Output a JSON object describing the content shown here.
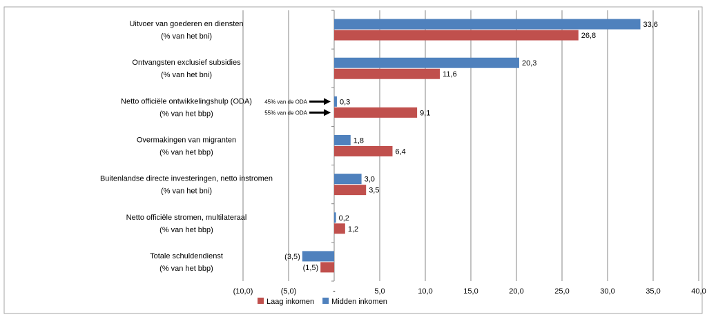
{
  "chart_data": {
    "type": "bar",
    "orientation": "horizontal",
    "categories": [
      {
        "line1": "Uitvoer van goederen en diensten",
        "line2": "(% van het bni)"
      },
      {
        "line1": "Ontvangsten exclusief subsidies",
        "line2": "(% van het bni)"
      },
      {
        "line1": "Netto officiële ontwikkelingshulp (ODA)",
        "line2": "(% van het bbp)"
      },
      {
        "line1": "Overmakingen van migranten",
        "line2": "(% van het bbp)"
      },
      {
        "line1": "Buitenlandse directe investeringen, netto instromen",
        "line2": "(% van het bni)"
      },
      {
        "line1": "Netto officiële stromen, multilateraal",
        "line2": "(% van het bbp)"
      },
      {
        "line1": "Totale schuldendienst",
        "line2": "(% van het bbp)"
      }
    ],
    "series": [
      {
        "name": "Midden inkomen",
        "color": "#4F81BD",
        "values": [
          33.6,
          20.3,
          0.3,
          1.8,
          3.0,
          0.2,
          -3.5
        ],
        "labels": [
          "33,6",
          "20,3",
          "0,3",
          "1,8",
          "3,0",
          "0,2",
          "(3,5)"
        ]
      },
      {
        "name": "Laag inkomen",
        "color": "#C0504D",
        "values": [
          26.8,
          11.6,
          9.1,
          6.4,
          3.5,
          1.2,
          -1.5
        ],
        "labels": [
          "26,8",
          "11,6",
          "9,1",
          "6,4",
          "3,5",
          "1,2",
          "(1,5)"
        ]
      }
    ],
    "xlim": [
      -10,
      40
    ],
    "xticks": [
      -10,
      -5,
      0,
      5,
      10,
      15,
      20,
      25,
      30,
      35,
      40
    ],
    "xtick_labels": [
      "(10,0)",
      "(5,0)",
      "-",
      "5,0",
      "10,0",
      "15,0",
      "20,0",
      "25,0",
      "30,0",
      "35,0",
      "40,0"
    ],
    "grid": true,
    "legend_position": "bottom",
    "legend": [
      {
        "name": "Laag inkomen",
        "color": "#C0504D"
      },
      {
        "name": "Midden inkomen",
        "color": "#4F81BD"
      }
    ],
    "annotations": [
      {
        "text": "45% van de ODA",
        "category_index": 2,
        "series": "Midden inkomen"
      },
      {
        "text": "55% van de ODA",
        "category_index": 2,
        "series": "Laag inkomen"
      }
    ]
  }
}
